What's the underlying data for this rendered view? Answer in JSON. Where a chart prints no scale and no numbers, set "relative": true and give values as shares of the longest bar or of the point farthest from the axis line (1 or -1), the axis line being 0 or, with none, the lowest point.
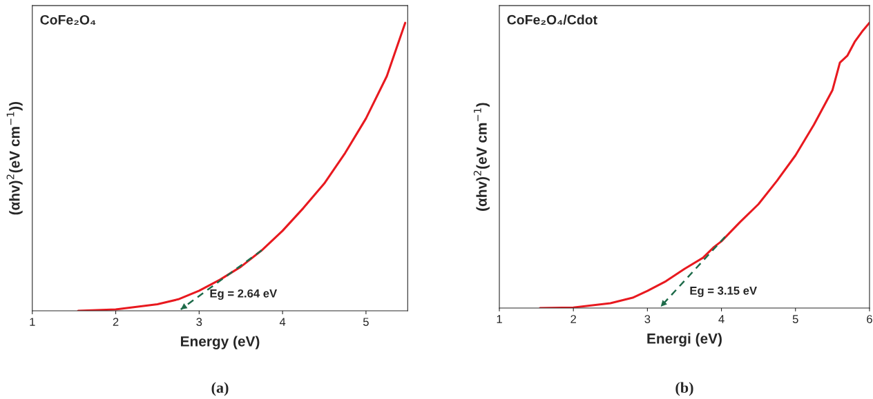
{
  "chart_data": [
    {
      "type": "line",
      "title": "CoFe₂O₄",
      "xlabel": "Energy (eV)",
      "ylabel": "(αhv)$^{2}$(eV cm$^{−1}$))",
      "relative": true,
      "xlim": [
        1,
        5.5
      ],
      "xticks": [
        1,
        2,
        3,
        4,
        5
      ],
      "tick_labels": "x",
      "grid": false,
      "legend": false,
      "series": [
        {
          "type": "line",
          "color": "#e8191f",
          "line_style": "solid",
          "x": [
            1.55,
            2.0,
            2.5,
            2.75,
            3.0,
            3.25,
            3.5,
            3.75,
            4.0,
            4.25,
            4.5,
            4.75,
            5.0,
            5.25,
            5.47
          ],
          "values": [
            0,
            0.005,
            0.023,
            0.04,
            0.07,
            0.108,
            0.153,
            0.21,
            0.278,
            0.357,
            0.442,
            0.548,
            0.668,
            0.815,
            1.0
          ]
        },
        {
          "type": "line",
          "color": "#1e6b4a",
          "line_style": "dashed",
          "x": [
            3.75,
            2.78
          ],
          "values": [
            0.21,
            0.005
          ]
        }
      ],
      "annotations": [
        "Eg = 2.64 eV",
        "(a)"
      ]
    },
    {
      "type": "line",
      "title": "CoFe₂O₄/Cdot",
      "xlabel": "Energi (eV)",
      "ylabel": "(αhv)$^{2}$(eV cm$^{−1}$)",
      "relative": true,
      "xlim": [
        1,
        6
      ],
      "xticks": [
        1,
        2,
        3,
        4,
        5,
        6
      ],
      "tick_labels": "x",
      "grid": false,
      "legend": false,
      "series": [
        {
          "type": "line",
          "color": "#e8191f",
          "line_style": "solid",
          "x": [
            1.55,
            2.0,
            2.5,
            2.8,
            3.0,
            3.25,
            3.5,
            3.75,
            3.9,
            4.0,
            4.25,
            4.5,
            4.75,
            5.0,
            5.25,
            5.5,
            5.6,
            5.7,
            5.8,
            5.9,
            6.0
          ],
          "values": [
            0,
            0.002,
            0.017,
            0.036,
            0.06,
            0.094,
            0.137,
            0.176,
            0.214,
            0.234,
            0.301,
            0.364,
            0.446,
            0.535,
            0.643,
            0.764,
            0.86,
            0.884,
            0.933,
            0.969,
            1.0
          ]
        },
        {
          "type": "line",
          "color": "#1e6b4a",
          "line_style": "dashed",
          "x": [
            4.05,
            3.18
          ],
          "values": [
            0.25,
            0.005
          ]
        }
      ],
      "annotations": [
        "Eg = 3.15 eV",
        "(b)"
      ]
    }
  ]
}
